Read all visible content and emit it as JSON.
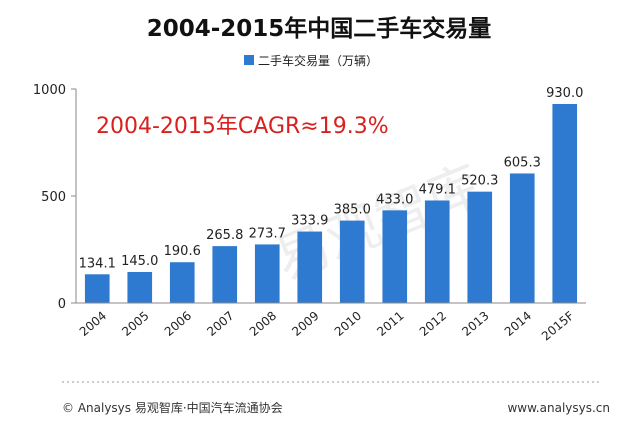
{
  "chart_data": {
    "type": "bar",
    "title": "2004-2015年中国二手车交易量",
    "categories": [
      "2004",
      "2005",
      "2006",
      "2007",
      "2008",
      "2009",
      "2010",
      "2011",
      "2012",
      "2013",
      "2014",
      "2015F"
    ],
    "series": [
      {
        "name": "二手车交易量（万辆）",
        "values": [
          134.1,
          145.0,
          190.6,
          265.8,
          273.7,
          333.9,
          385.0,
          433.0,
          479.1,
          520.3,
          605.3,
          930.0
        ],
        "labels": [
          "134.1",
          "145.0",
          "190.6",
          "265.8",
          "273.7",
          "333.9",
          "385.0",
          "433.0",
          "479.1",
          "520.3",
          "605.3",
          "930.0"
        ]
      }
    ],
    "ylim": [
      0,
      1000
    ],
    "yticks": [
      0,
      500,
      1000
    ],
    "legend_position": "top-center",
    "annotation": "2004-2015年CAGR≈19.3%",
    "colors": {
      "bar": "#2e7ad1",
      "annotation": "#d8211e"
    }
  },
  "watermark": "易观智库",
  "footer": {
    "source": "© Analysys 易观智库·中国汽车流通协会",
    "url": "www.analysys.cn"
  }
}
